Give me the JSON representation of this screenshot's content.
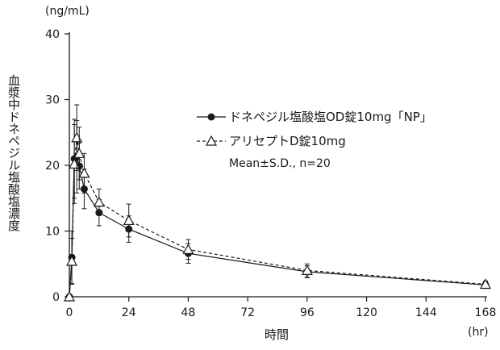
{
  "chart_data": {
    "type": "line",
    "ylabel": "血漿中ドネペジル塩酸塩濃度",
    "yunit": "(ng/mL)",
    "xlabel": "時間",
    "xunit": "(hr)",
    "ylim": [
      0,
      40
    ],
    "yticks": [
      0,
      10,
      20,
      30,
      40
    ],
    "xlim": [
      0,
      168
    ],
    "xticks": [
      0,
      24,
      48,
      72,
      96,
      120,
      144,
      168
    ],
    "legend_position": "right",
    "note": "Mean±S.D., n=20",
    "series": [
      {
        "name": "ドネペジル塩酸塩OD錠10mg「NP」",
        "marker": "filled-circle",
        "line": "solid",
        "color": "#1a1a1a",
        "x": [
          0,
          1,
          2,
          3,
          4,
          6,
          12,
          24,
          48,
          96,
          168
        ],
        "y": [
          0,
          6.0,
          21.0,
          21.3,
          19.9,
          16.4,
          12.8,
          10.3,
          6.6,
          3.8,
          1.8
        ],
        "sd": [
          0,
          4.0,
          6.0,
          5.5,
          3.5,
          3.0,
          2.0,
          2.0,
          1.5,
          0.9,
          0.5
        ]
      },
      {
        "name": "アリセプトD錠10mg",
        "marker": "open-triangle",
        "line": "dashed",
        "color": "#1a1a1a",
        "x": [
          0,
          1,
          2,
          3,
          4,
          6,
          12,
          24,
          48,
          96,
          168
        ],
        "y": [
          0,
          5.4,
          20.2,
          24.2,
          21.8,
          18.8,
          14.4,
          11.6,
          7.2,
          4.0,
          1.9
        ],
        "sd": [
          0,
          3.5,
          6.0,
          5.0,
          4.0,
          3.0,
          2.0,
          2.5,
          1.5,
          1.0,
          0.5
        ]
      }
    ]
  }
}
